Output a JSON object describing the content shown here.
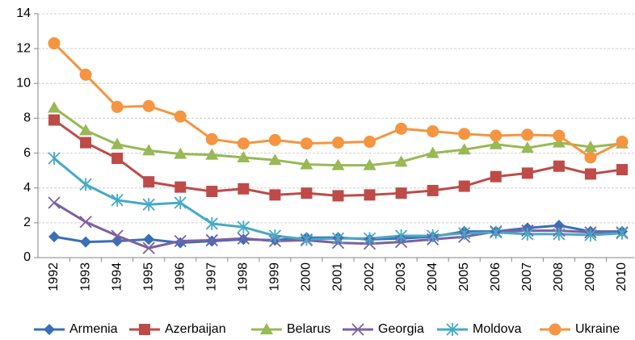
{
  "chart_data": {
    "type": "line",
    "categories": [
      "1992",
      "1993",
      "1994",
      "1995",
      "1996",
      "1997",
      "1998",
      "1999",
      "2000",
      "2001",
      "2002",
      "2003",
      "2004",
      "2005",
      "2006",
      "2007",
      "2008",
      "2009",
      "2010"
    ],
    "series": [
      {
        "name": "Armenia",
        "color": "#3a6fb7",
        "marker": "diamond",
        "values": [
          1.2,
          0.9,
          0.95,
          1.05,
          0.85,
          0.95,
          1.05,
          1.0,
          1.15,
          1.15,
          1.05,
          1.1,
          1.2,
          1.5,
          1.5,
          1.7,
          1.85,
          1.5,
          1.5
        ]
      },
      {
        "name": "Azerbaijan",
        "color": "#be4b48",
        "marker": "square",
        "values": [
          7.9,
          6.6,
          5.7,
          4.35,
          4.05,
          3.8,
          3.95,
          3.6,
          3.7,
          3.55,
          3.6,
          3.7,
          3.85,
          4.1,
          4.65,
          4.85,
          5.25,
          4.8,
          5.05
        ]
      },
      {
        "name": "Belarus",
        "color": "#98b954",
        "marker": "triangle",
        "values": [
          8.6,
          7.3,
          6.5,
          6.15,
          5.95,
          5.9,
          5.75,
          5.6,
          5.35,
          5.3,
          5.3,
          5.5,
          6.0,
          6.2,
          6.5,
          6.3,
          6.6,
          6.35,
          6.55
        ]
      },
      {
        "name": "Georgia",
        "color": "#7d60a0",
        "marker": "x",
        "values": [
          3.15,
          2.05,
          1.25,
          0.55,
          0.95,
          1.0,
          1.1,
          0.95,
          1.0,
          0.85,
          0.8,
          0.9,
          1.05,
          1.2,
          1.5,
          1.55,
          1.55,
          1.45,
          1.45
        ]
      },
      {
        "name": "Moldova",
        "color": "#46aac5",
        "marker": "star",
        "values": [
          5.7,
          4.2,
          3.3,
          3.05,
          3.15,
          1.95,
          1.75,
          1.25,
          1.05,
          1.1,
          1.1,
          1.25,
          1.25,
          1.4,
          1.45,
          1.35,
          1.35,
          1.3,
          1.4
        ]
      },
      {
        "name": "Ukraine",
        "color": "#f59541",
        "marker": "circle",
        "values": [
          12.3,
          10.5,
          8.65,
          8.7,
          8.1,
          6.8,
          6.55,
          6.75,
          6.55,
          6.6,
          6.65,
          7.4,
          7.25,
          7.1,
          7.0,
          7.05,
          7.0,
          5.75,
          6.65
        ]
      }
    ],
    "ylim": [
      0,
      14
    ],
    "yticks": [
      0,
      2,
      4,
      6,
      8,
      10,
      12,
      14
    ],
    "grid": true,
    "legend": "bottom"
  }
}
